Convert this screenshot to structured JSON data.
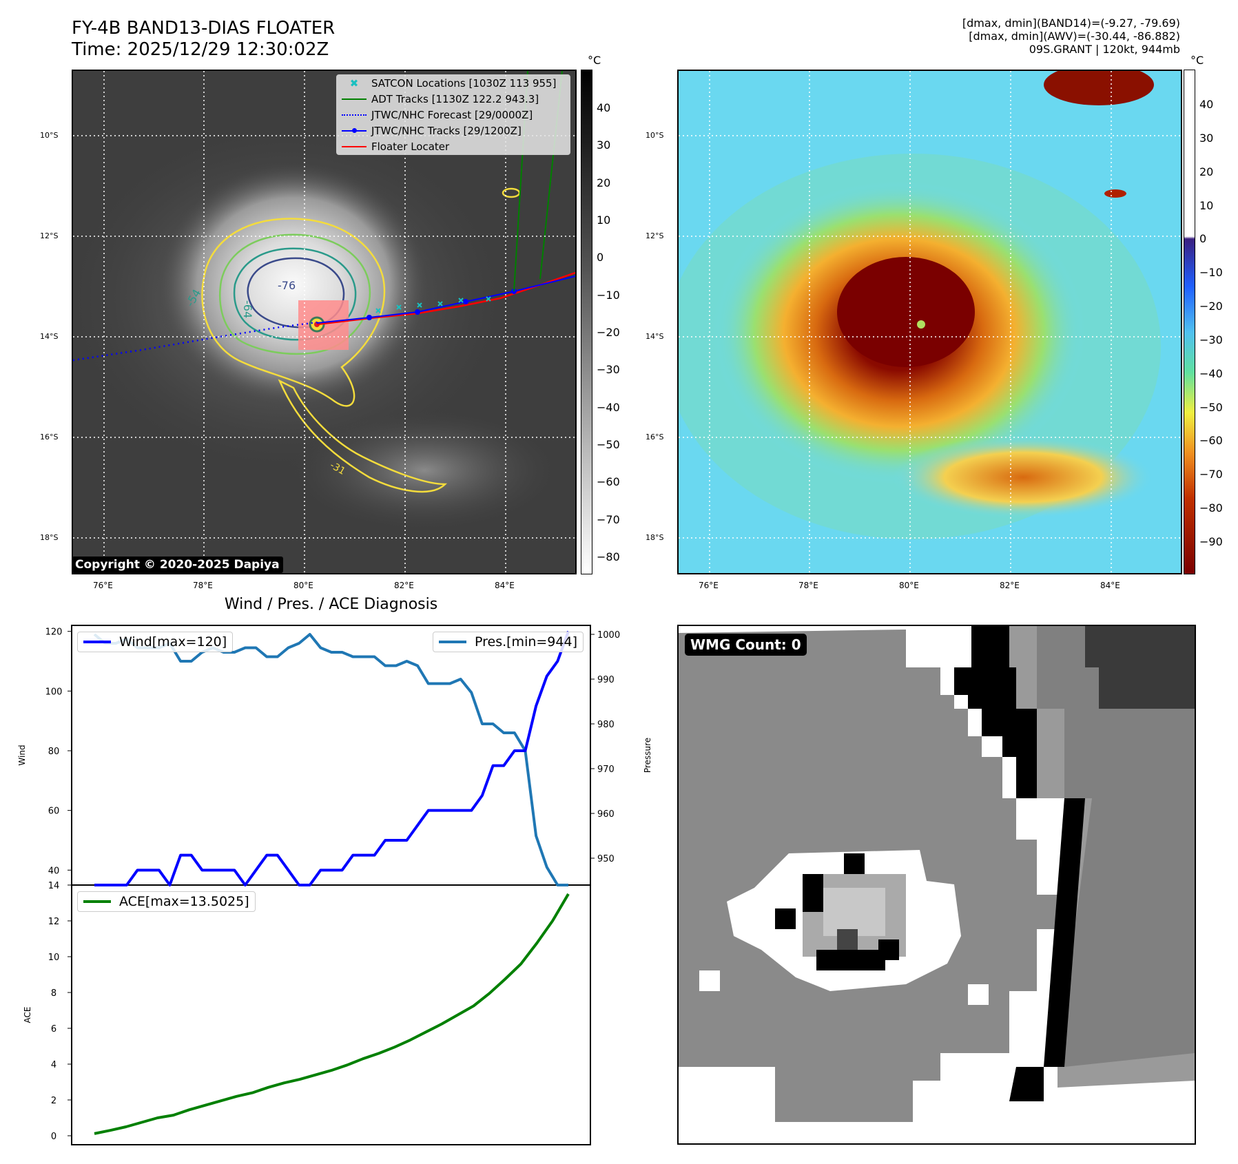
{
  "header": {
    "title_line1": "FY-4B BAND13-DIAS FLOATER",
    "title_line2": "Time: 2025/12/29 12:30:02Z",
    "info_line1": "[dmax, dmin](BAND14)=(-9.27, -79.69)",
    "info_line2": "[dmax, dmin](AWV)=(-30.44, -86.882)",
    "info_line3": "09S.GRANT | 120kt, 944mb"
  },
  "map": {
    "lat_labels": [
      "10°S",
      "12°S",
      "14°S",
      "16°S",
      "18°S"
    ],
    "lon_labels": [
      "76°E",
      "78°E",
      "80°E",
      "82°E",
      "84°E"
    ],
    "contour_labels": [
      "-54",
      "-64",
      "-76",
      "-31"
    ],
    "copyright": "Copyright © 2020-2025 Dapiya",
    "legend": [
      {
        "label": "SATCON Locations [1030Z 113 955]",
        "color": "#19c0c0",
        "icon": "x-marker-icon"
      },
      {
        "label": "ADT Tracks [1130Z 122.2 943.3]",
        "color": "#008000",
        "icon": "line-icon"
      },
      {
        "label": "JTWC/NHC Forecast [29/0000Z]",
        "color": "#0000ff",
        "icon": "dotted-line-icon"
      },
      {
        "label": "JTWC/NHC Tracks [29/1200Z]",
        "color": "#0000ff",
        "icon": "line-dot-icon"
      },
      {
        "label": "Floater Locater",
        "color": "#ff0000",
        "icon": "line-icon"
      }
    ],
    "colorbar_unit": "°C",
    "colorbar1_ticks": [
      "40",
      "30",
      "20",
      "10",
      "0",
      "−10",
      "−20",
      "−30",
      "−40",
      "−50",
      "−60",
      "−70",
      "−80"
    ],
    "colorbar2_ticks": [
      "40",
      "30",
      "20",
      "10",
      "0",
      "−10",
      "−20",
      "−30",
      "−40",
      "−50",
      "−60",
      "−70",
      "−80",
      "−90"
    ]
  },
  "wmg": {
    "label": "WMG Count: 0"
  },
  "chart_data": [
    {
      "type": "line",
      "title": "Wind / Pres. / ACE Diagnosis",
      "xlabel": "",
      "ylabel": "Wind",
      "ylabel_right": "Pressure",
      "ylim": [
        35,
        122
      ],
      "ylim_right": [
        944,
        1002
      ],
      "yticks": [
        40,
        60,
        80,
        100,
        120
      ],
      "yticks_right": [
        950,
        960,
        970,
        980,
        990,
        1000
      ],
      "grid": false,
      "series": [
        {
          "name": "Wind[max=120]",
          "color": "#0000ff",
          "axis": "left",
          "values": [
            35,
            35,
            35,
            35,
            40,
            40,
            40,
            35,
            45,
            45,
            40,
            40,
            40,
            40,
            35,
            40,
            45,
            45,
            40,
            35,
            35,
            40,
            40,
            40,
            45,
            45,
            45,
            50,
            50,
            50,
            55,
            60,
            60,
            60,
            60,
            60,
            65,
            75,
            75,
            80,
            80,
            95,
            105,
            110,
            120
          ]
        },
        {
          "name": "Pres.[min=944]",
          "color": "#1f77b4",
          "axis": "right",
          "values": [
            1000,
            998,
            998,
            999,
            997,
            997,
            997,
            998,
            994,
            994,
            996,
            997,
            996,
            996,
            997,
            997,
            995,
            995,
            997,
            998,
            1000,
            997,
            996,
            996,
            995,
            995,
            995,
            993,
            993,
            994,
            993,
            989,
            989,
            989,
            990,
            987,
            980,
            980,
            978,
            978,
            974,
            955,
            948,
            944,
            944
          ]
        },
        {
          "name": "",
          "color": "#0000ff",
          "axis": "left",
          "values": []
        }
      ],
      "legend": [
        "upper left",
        "upper right"
      ]
    },
    {
      "type": "line",
      "xlabel": "",
      "ylabel": "ACE",
      "ylim": [
        -0.5,
        14
      ],
      "yticks": [
        0,
        2,
        4,
        6,
        8,
        10,
        12,
        14
      ],
      "grid": false,
      "series": [
        {
          "name": "ACE[max=13.5025]",
          "color": "#008000",
          "values": [
            0.12,
            0.3,
            0.5,
            0.75,
            1.0,
            1.15,
            1.45,
            1.7,
            1.95,
            2.2,
            2.4,
            2.7,
            2.95,
            3.15,
            3.4,
            3.65,
            3.95,
            4.3,
            4.6,
            4.95,
            5.35,
            5.8,
            6.25,
            6.75,
            7.25,
            7.95,
            8.75,
            9.6,
            10.75,
            12.0,
            13.5025
          ]
        }
      ],
      "legend": "upper left"
    }
  ]
}
